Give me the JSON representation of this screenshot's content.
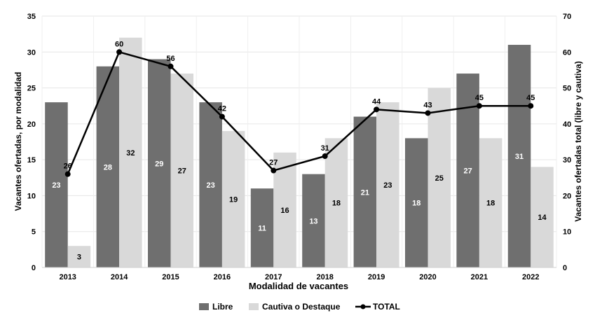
{
  "chart_data": {
    "type": "bar",
    "categories": [
      "2013",
      "2014",
      "2015",
      "2016",
      "2017",
      "2018",
      "2019",
      "2020",
      "2021",
      "2022"
    ],
    "series": [
      {
        "name": "Libre",
        "type": "bar",
        "axis": "left",
        "color": "#6f6f6f",
        "values": [
          23,
          28,
          29,
          23,
          11,
          13,
          21,
          18,
          27,
          31
        ]
      },
      {
        "name": "Cautiva o Destaque",
        "type": "bar",
        "axis": "left",
        "color": "#d9d9d9",
        "values": [
          3,
          32,
          27,
          19,
          16,
          18,
          23,
          25,
          18,
          14
        ]
      },
      {
        "name": "TOTAL",
        "type": "line",
        "axis": "right",
        "color": "#000000",
        "values": [
          26,
          60,
          56,
          42,
          27,
          31,
          44,
          43,
          45,
          45
        ]
      }
    ],
    "xlabel": "Modalidad de vacantes",
    "ylabel": "Vacantes ofertadas, por modalidad",
    "y2label": "Vacantes ofertadas total (libre y cautiva)",
    "ylim": [
      0,
      35
    ],
    "y2lim": [
      0,
      70
    ],
    "yticks": [
      0,
      5,
      10,
      15,
      20,
      25,
      30,
      35
    ],
    "y2ticks": [
      0,
      10,
      20,
      30,
      40,
      50,
      60,
      70
    ],
    "grid": true,
    "legend_position": "bottom"
  }
}
